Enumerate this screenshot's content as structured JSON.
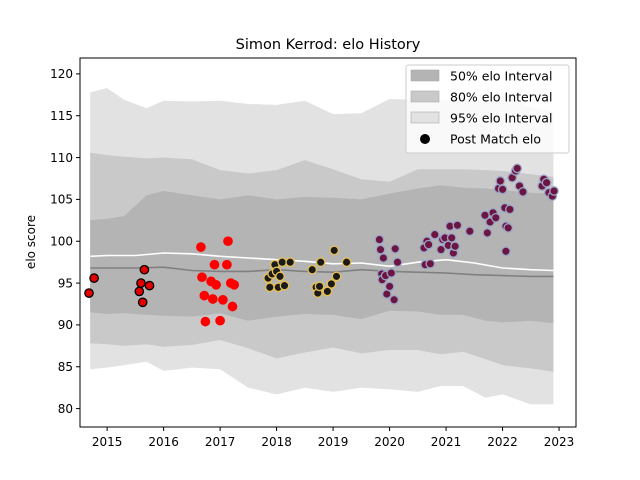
{
  "chart_data": {
    "type": "scatter",
    "title": "Simon Kerrod: elo History",
    "xlabel": "",
    "ylabel": "elo score",
    "xlim": [
      2014.52,
      2023.3
    ],
    "ylim": [
      77.8,
      121.9
    ],
    "xticks": [
      2015,
      2016,
      2017,
      2018,
      2019,
      2020,
      2021,
      2022,
      2023
    ],
    "yticks": [
      80,
      85,
      90,
      95,
      100,
      105,
      110,
      115,
      120
    ],
    "grid": false,
    "legend_position": "top-right",
    "legend": [
      {
        "label": "50% elo Interval",
        "swatch": "band",
        "color": "#b4b4b4"
      },
      {
        "label": "80% elo Interval",
        "swatch": "band",
        "color": "#c9c9c9"
      },
      {
        "label": "95% elo Interval",
        "swatch": "band",
        "color": "#e2e2e2"
      },
      {
        "label": "Post Match elo",
        "swatch": "dot",
        "color": "#000000"
      }
    ],
    "bands": {
      "x": [
        2014.7,
        2015.0,
        2015.3,
        2015.7,
        2016.0,
        2016.5,
        2017.0,
        2017.5,
        2018.0,
        2018.5,
        2019.0,
        2019.5,
        2020.0,
        2020.5,
        2020.9,
        2021.3,
        2021.7,
        2022.0,
        2022.5,
        2022.9
      ],
      "p95": {
        "lower": [
          84.7,
          84.9,
          85.2,
          85.6,
          84.5,
          84.9,
          84.7,
          82.5,
          81.7,
          82.5,
          82.0,
          82.5,
          82.3,
          82.0,
          82.7,
          82.7,
          81.3,
          81.7,
          80.5,
          80.5
        ],
        "upper": [
          117.8,
          118.3,
          116.9,
          115.9,
          116.8,
          116.7,
          116.8,
          116.4,
          116.3,
          116.8,
          115.2,
          115.3,
          117.0,
          116.9,
          116.9,
          116.8,
          116.8,
          117.8,
          116.0,
          115.5
        ]
      },
      "p80": {
        "lower": [
          87.8,
          87.7,
          87.5,
          87.7,
          87.4,
          87.6,
          88.2,
          87.2,
          86.0,
          86.7,
          87.3,
          86.6,
          87.0,
          87.0,
          86.5,
          86.8,
          85.9,
          85.2,
          84.8,
          84.4
        ],
        "upper": [
          110.6,
          110.3,
          110.1,
          109.9,
          110.0,
          109.8,
          108.5,
          108.1,
          108.5,
          109.7,
          108.6,
          107.4,
          107.1,
          108.6,
          108.6,
          108.6,
          108.5,
          108.4,
          108.0,
          107.7
        ]
      },
      "p50": {
        "lower": [
          91.5,
          91.3,
          91.4,
          91.2,
          91.1,
          91.0,
          91.4,
          90.5,
          91.0,
          91.3,
          91.2,
          90.7,
          91.7,
          91.6,
          91.2,
          91.2,
          90.5,
          90.3,
          90.5,
          90.2
        ],
        "upper": [
          102.5,
          102.7,
          103.0,
          105.5,
          106.0,
          105.5,
          105.0,
          105.5,
          105.0,
          105.3,
          105.2,
          105.0,
          105.7,
          106.3,
          106.7,
          106.4,
          106.3,
          106.1,
          105.8,
          105.7
        ]
      }
    },
    "median_line": {
      "x": [
        2014.7,
        2015.5,
        2016.0,
        2016.5,
        2017.0,
        2017.5,
        2018.0,
        2018.5,
        2019.0,
        2019.5,
        2020.0,
        2020.5,
        2021.0,
        2021.5,
        2022.0,
        2022.5,
        2022.9
      ],
      "y": [
        96.8,
        96.8,
        96.9,
        96.5,
        96.4,
        96.4,
        96.6,
        96.4,
        96.3,
        96.6,
        96.4,
        96.3,
        96.2,
        96.0,
        95.9,
        95.8,
        95.8
      ],
      "color": "#808080"
    },
    "mean_line": {
      "x": [
        2014.7,
        2015.0,
        2015.5,
        2016.0,
        2016.5,
        2017.0,
        2017.5,
        2018.0,
        2018.5,
        2019.0,
        2019.5,
        2020.0,
        2020.5,
        2021.0,
        2021.5,
        2022.0,
        2022.5,
        2022.9
      ],
      "y": [
        98.2,
        98.3,
        98.3,
        98.6,
        98.5,
        98.2,
        98.0,
        97.8,
        97.6,
        97.3,
        97.4,
        97.0,
        97.5,
        97.8,
        97.4,
        96.8,
        96.6,
        96.5
      ],
      "color": "#ffffff"
    },
    "series": [
      {
        "period": "2014-2015",
        "fill": "#e00000",
        "edge": "#000000",
        "points": [
          [
            2014.68,
            93.8
          ],
          [
            2014.77,
            95.6
          ],
          [
            2015.57,
            94.0
          ],
          [
            2015.6,
            95.0
          ],
          [
            2015.63,
            92.7
          ],
          [
            2015.66,
            96.6
          ],
          [
            2015.75,
            94.7
          ]
        ]
      },
      {
        "period": "2016-2017",
        "fill": "#ff0000",
        "edge": "#ff0000",
        "points": [
          [
            2016.66,
            99.3
          ],
          [
            2016.68,
            95.7
          ],
          [
            2016.72,
            93.5
          ],
          [
            2016.74,
            90.4
          ],
          [
            2016.84,
            95.2
          ],
          [
            2016.87,
            93.1
          ],
          [
            2016.9,
            97.2
          ],
          [
            2016.93,
            94.8
          ],
          [
            2017.0,
            90.5
          ],
          [
            2017.05,
            93.0
          ],
          [
            2017.12,
            97.2
          ],
          [
            2017.14,
            100.0
          ],
          [
            2017.19,
            95.0
          ],
          [
            2017.22,
            92.2
          ],
          [
            2017.25,
            94.8
          ]
        ]
      },
      {
        "period": "2017-2018",
        "fill": "#1a1a1a",
        "edge": "#e8c050",
        "points": [
          [
            2017.85,
            95.6
          ],
          [
            2017.88,
            94.5
          ],
          [
            2017.92,
            96.1
          ],
          [
            2017.97,
            97.2
          ],
          [
            2018.0,
            96.4
          ],
          [
            2018.03,
            94.5
          ],
          [
            2018.06,
            95.8
          ],
          [
            2018.1,
            97.5
          ],
          [
            2018.14,
            94.7
          ],
          [
            2018.24,
            97.5
          ]
        ]
      },
      {
        "period": "2018-2019",
        "fill": "#1a1a1a",
        "edge": "#e8c050",
        "points": [
          [
            2018.63,
            96.6
          ],
          [
            2018.7,
            94.5
          ],
          [
            2018.73,
            93.8
          ],
          [
            2018.76,
            94.6
          ],
          [
            2018.78,
            97.5
          ],
          [
            2018.9,
            94.0
          ],
          [
            2018.97,
            94.9
          ],
          [
            2019.02,
            98.9
          ],
          [
            2019.06,
            95.8
          ],
          [
            2019.24,
            97.5
          ]
        ]
      },
      {
        "period": "2019-2023",
        "fill": "#6b1540",
        "edge": "#9aa4c8",
        "points": [
          [
            2019.82,
            100.2
          ],
          [
            2019.84,
            99.0
          ],
          [
            2019.86,
            96.1
          ],
          [
            2019.87,
            95.4
          ],
          [
            2019.89,
            98.0
          ],
          [
            2019.93,
            95.9
          ],
          [
            2019.95,
            93.7
          ],
          [
            2020.0,
            94.6
          ],
          [
            2020.03,
            96.2
          ],
          [
            2020.08,
            93.0
          ],
          [
            2020.1,
            99.1
          ],
          [
            2020.14,
            97.5
          ],
          [
            2020.61,
            99.2
          ],
          [
            2020.63,
            97.2
          ],
          [
            2020.66,
            100.0
          ],
          [
            2020.69,
            99.6
          ],
          [
            2020.72,
            97.3
          ],
          [
            2020.8,
            100.8
          ],
          [
            2020.91,
            99.0
          ],
          [
            2020.94,
            100.2
          ],
          [
            2020.98,
            100.4
          ],
          [
            2021.04,
            99.5
          ],
          [
            2021.07,
            101.8
          ],
          [
            2021.1,
            100.4
          ],
          [
            2021.13,
            98.6
          ],
          [
            2021.16,
            99.4
          ],
          [
            2021.2,
            101.9
          ],
          [
            2021.42,
            101.2
          ],
          [
            2021.69,
            103.1
          ],
          [
            2021.73,
            101.0
          ],
          [
            2021.78,
            102.3
          ],
          [
            2021.83,
            103.4
          ],
          [
            2021.88,
            102.8
          ],
          [
            2021.93,
            106.3
          ],
          [
            2021.96,
            107.2
          ],
          [
            2022.0,
            106.2
          ],
          [
            2022.04,
            104.0
          ],
          [
            2022.06,
            101.8
          ],
          [
            2022.1,
            101.6
          ],
          [
            2022.13,
            103.8
          ],
          [
            2022.17,
            107.6
          ],
          [
            2022.23,
            108.4
          ],
          [
            2022.26,
            108.7
          ],
          [
            2022.3,
            106.6
          ],
          [
            2022.36,
            105.9
          ],
          [
            2022.06,
            98.8
          ],
          [
            2022.7,
            106.6
          ],
          [
            2022.73,
            107.4
          ],
          [
            2022.78,
            107.0
          ],
          [
            2022.82,
            105.8
          ],
          [
            2022.88,
            105.4
          ],
          [
            2022.91,
            106.0
          ]
        ]
      }
    ]
  }
}
